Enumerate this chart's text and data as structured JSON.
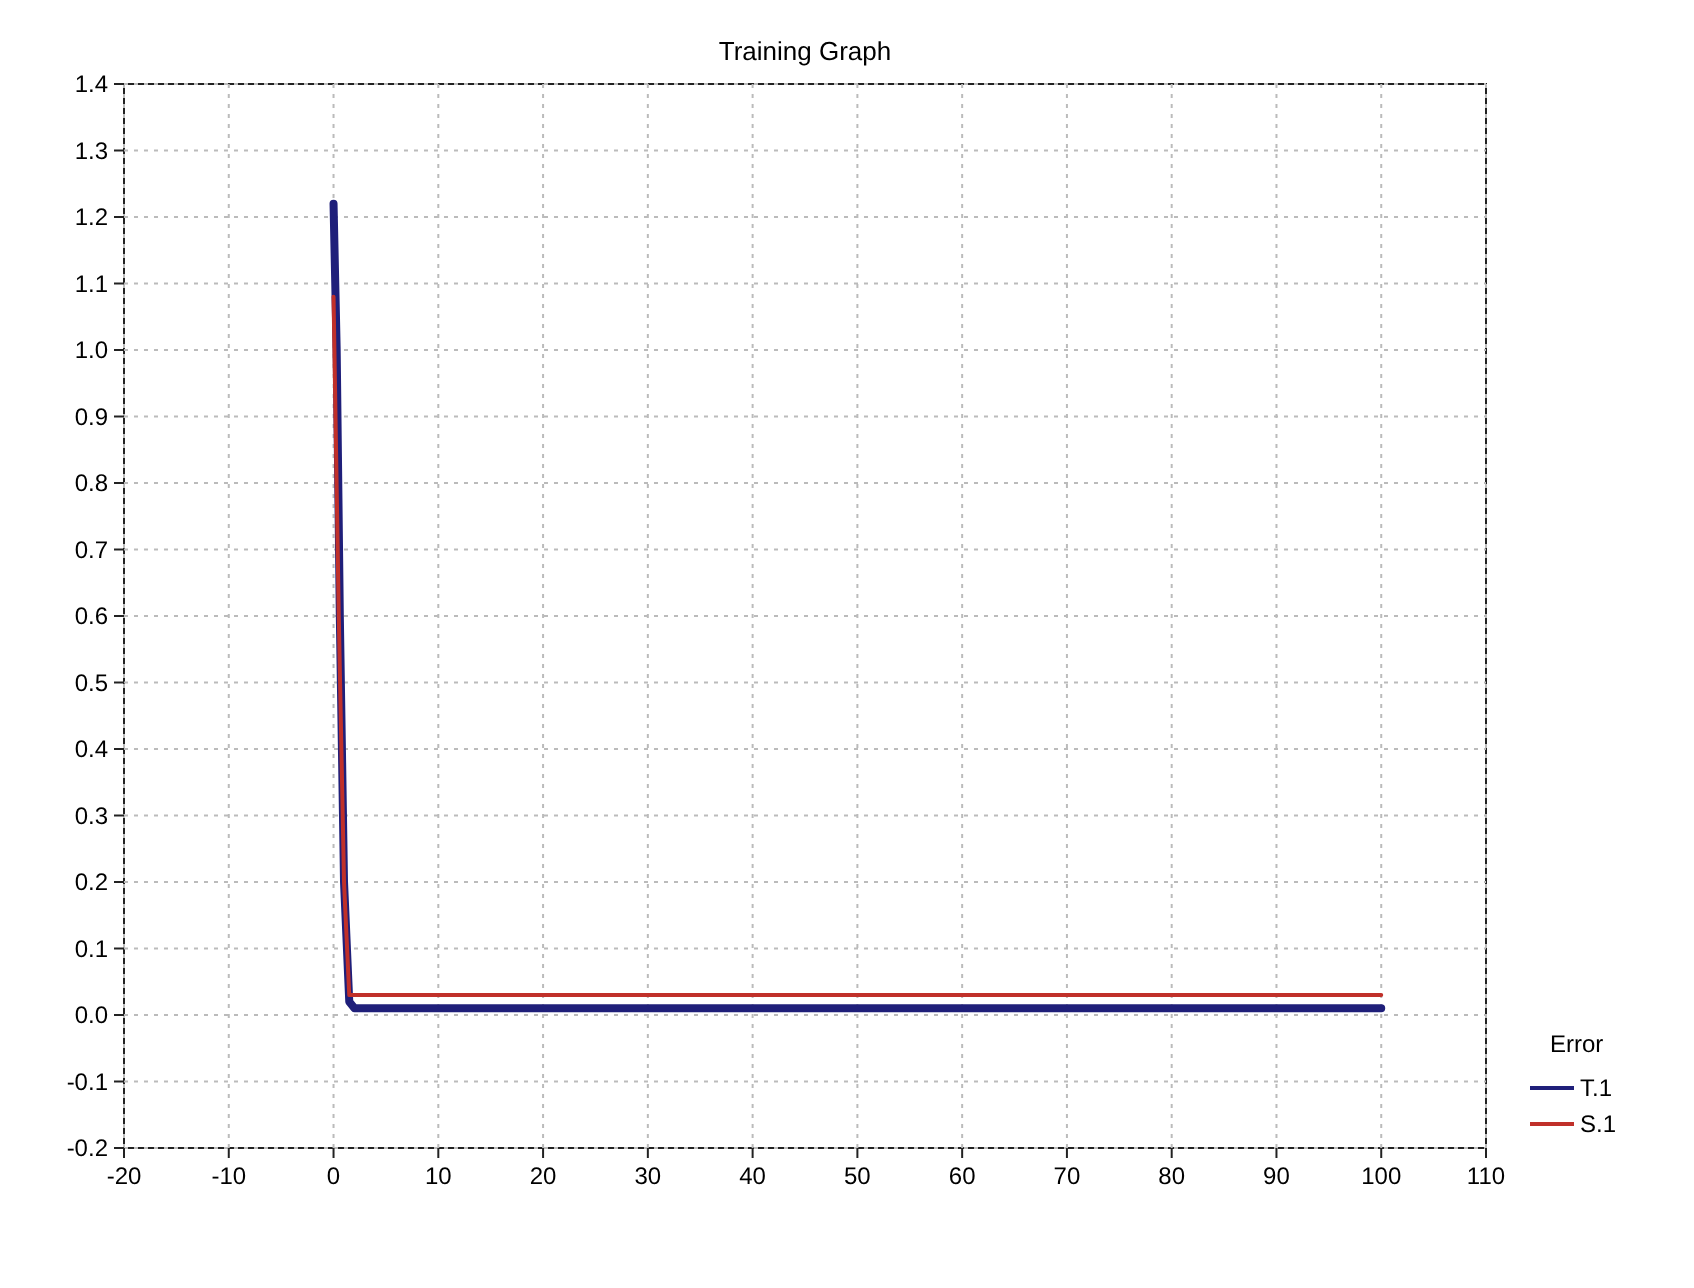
{
  "chart_data": {
    "type": "line",
    "title": "Training Graph",
    "legend_title": "Error",
    "xlim": [
      -20,
      110
    ],
    "xticks": [
      -20,
      -10,
      0,
      10,
      20,
      30,
      40,
      50,
      60,
      70,
      80,
      90,
      100,
      110
    ],
    "ylim": [
      -0.2,
      1.4
    ],
    "yticks": [
      {
        "value": -0.2,
        "label": "-0.2"
      },
      {
        "value": -0.1,
        "label": "-0.1"
      },
      {
        "value": 0,
        "label": "0.0"
      },
      {
        "value": 0.1,
        "label": "0.1"
      },
      {
        "value": 0.2,
        "label": "0.2"
      },
      {
        "value": 0.3,
        "label": "0.3"
      },
      {
        "value": 0.4,
        "label": "0.4"
      },
      {
        "value": 0.5,
        "label": "0.5"
      },
      {
        "value": 0.6,
        "label": "0.6"
      },
      {
        "value": 0.7,
        "label": "0.7"
      },
      {
        "value": 0.8,
        "label": "0.8"
      },
      {
        "value": 0.9,
        "label": "0.9"
      },
      {
        "value": 1,
        "label": "1.0"
      },
      {
        "value": 1.1,
        "label": "1.1"
      },
      {
        "value": 1.2,
        "label": "1.2"
      },
      {
        "value": 1.3,
        "label": "1.3"
      },
      {
        "value": 1.4,
        "label": "1.4"
      }
    ],
    "grid": true,
    "legend": "bottom right",
    "marker": "none",
    "line_style": "solid",
    "series": [
      {
        "name": "T.1",
        "color": "#1f1f7a",
        "x": [
          0,
          0.3,
          0.6,
          1,
          1.5,
          2,
          100
        ],
        "values": [
          1.22,
          1.0,
          0.6,
          0.2,
          0.02,
          0.01,
          0.01
        ]
      },
      {
        "name": "S.1",
        "color": "#c0302a",
        "x": [
          0,
          0.5,
          1,
          1.5,
          100
        ],
        "values": [
          1.08,
          0.6,
          0.2,
          0.03,
          0.03
        ]
      }
    ]
  }
}
